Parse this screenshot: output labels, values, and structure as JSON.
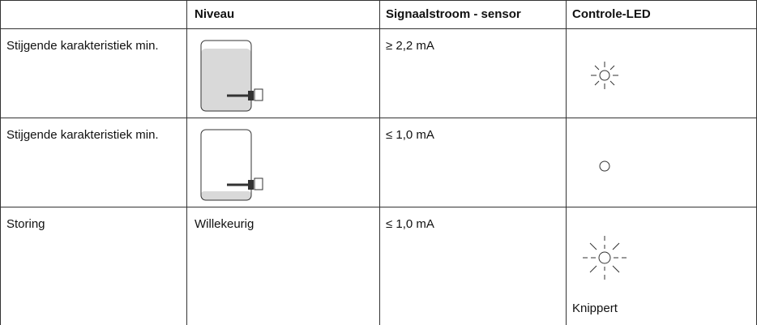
{
  "header": {
    "columns": [
      "Niveau",
      "Signaalstroom - sensor",
      "Controle-LED"
    ]
  },
  "rows": [
    {
      "label": "Stijgende karakteristiek min.",
      "signal": "≥ 2,2 mA"
    },
    {
      "label": "Stijgende karakteristiek min.",
      "signal": "≤ 1,0 mA"
    },
    {
      "label": "Storing",
      "level": "Willekeurig",
      "signal": "≤ 1,0 mA",
      "led_note": "Knippert"
    }
  ]
}
